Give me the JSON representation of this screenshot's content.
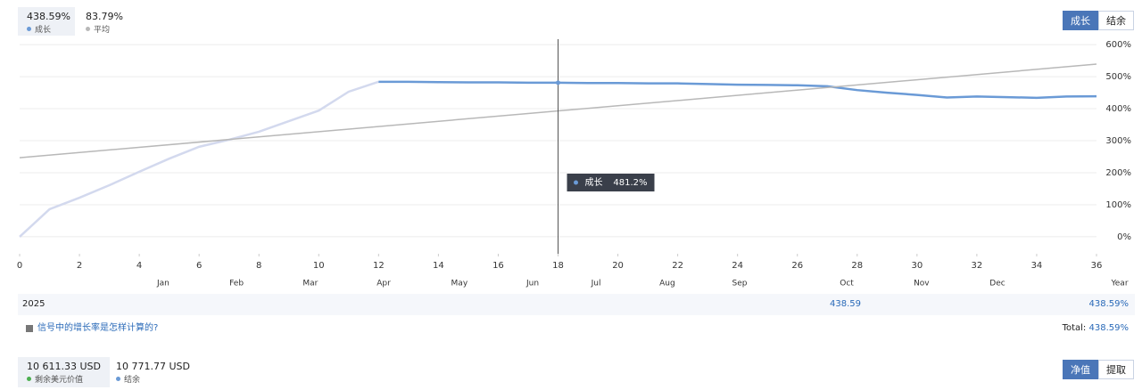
{
  "summary": [
    {
      "value": "438.59%",
      "label": "成长"
    },
    {
      "value": "83.79%",
      "label": "平均"
    }
  ],
  "tabs": [
    "成长",
    "结余"
  ],
  "chart_data": {
    "type": "line",
    "x": [
      0,
      1,
      2,
      3,
      4,
      5,
      6,
      7,
      8,
      9,
      10,
      11,
      12,
      13,
      14,
      15,
      16,
      17,
      18,
      19,
      20,
      21,
      22,
      23,
      24,
      25,
      26,
      27,
      28,
      29,
      30,
      31,
      32,
      33,
      34,
      35,
      36
    ],
    "xlim": [
      0,
      36
    ],
    "xticks": [
      0,
      2,
      4,
      6,
      8,
      10,
      12,
      14,
      16,
      18,
      20,
      22,
      24,
      26,
      28,
      30,
      32,
      34,
      36
    ],
    "xlabel": "Year",
    "month_ticks": [
      {
        "value": 4.8,
        "label": "Jan"
      },
      {
        "value": 7.25,
        "label": "Feb"
      },
      {
        "value": 9.72,
        "label": "Mar"
      },
      {
        "value": 12.17,
        "label": "Apr"
      },
      {
        "value": 14.7,
        "label": "May"
      },
      {
        "value": 17.15,
        "label": "Jun"
      },
      {
        "value": 19.27,
        "label": "Jul"
      },
      {
        "value": 21.65,
        "label": "Aug"
      },
      {
        "value": 24.07,
        "label": "Sep"
      },
      {
        "value": 27.65,
        "label": "Oct"
      },
      {
        "value": 30.15,
        "label": "Nov"
      },
      {
        "value": 32.69,
        "label": "Dec"
      }
    ],
    "ylim": [
      -53,
      617
    ],
    "yticks": [
      {
        "value": 0,
        "label": "0%"
      },
      {
        "value": 100,
        "label": "100%"
      },
      {
        "value": 200,
        "label": "200%"
      },
      {
        "value": 300,
        "label": "300%"
      },
      {
        "value": 400,
        "label": "400%"
      },
      {
        "value": 500,
        "label": "500%"
      },
      {
        "value": 600,
        "label": "600%"
      }
    ],
    "grid": true,
    "series": [
      {
        "name": "成长",
        "color": "#6a9ad6",
        "faded_color": "#d3d9ee",
        "faded_before": 12,
        "values": [
          0,
          86,
          122,
          161,
          203,
          244,
          281,
          303,
          328,
          361,
          394,
          453,
          484,
          484,
          483,
          482,
          482,
          481,
          481.2,
          480,
          480,
          479,
          479,
          477,
          475,
          474,
          473,
          470,
          458,
          450,
          443,
          435,
          438,
          436,
          434,
          438,
          438.59
        ]
      },
      {
        "name": "平均",
        "color": "#b8b8b8",
        "x": [
          0,
          36
        ],
        "values": [
          247,
          539
        ]
      }
    ],
    "tooltip": {
      "x": 18,
      "label": "成长",
      "value": 481.2,
      "value_label": "481.2%"
    }
  },
  "year_row": {
    "year": "2025",
    "value": "438.59",
    "total": "438.59%"
  },
  "footnote": {
    "link": "信号中的增长率是怎样计算的?",
    "total_label": "Total:",
    "total_value": "438.59%"
  },
  "bottom_summary": [
    {
      "value": "10 611.33 USD",
      "label": "剩余美元价值"
    },
    {
      "value": "10 771.77 USD",
      "label": "结余"
    }
  ],
  "bottom_buttons": [
    "净值",
    "提取"
  ]
}
